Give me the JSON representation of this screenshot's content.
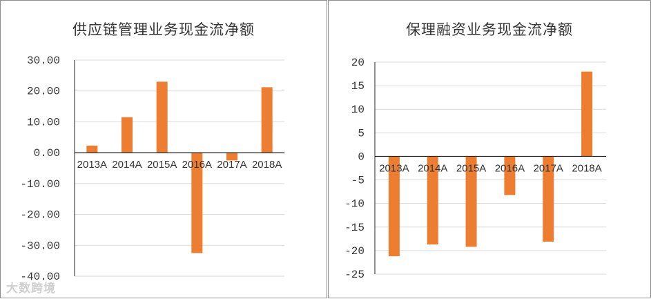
{
  "chart_data": [
    {
      "type": "bar",
      "title": "供应链管理业务现金流净额",
      "categories": [
        "2013A",
        "2014A",
        "2015A",
        "2016A",
        "2017A",
        "2018A"
      ],
      "values": [
        2.3,
        11.5,
        23.0,
        -32.5,
        -2.5,
        21.2
      ],
      "ylim": [
        -40,
        30
      ],
      "yticks": [
        "30.00",
        "20.00",
        "10.00",
        "0.00",
        "-10.00",
        "-20.00",
        "-30.00",
        "-40.00"
      ],
      "grid": true,
      "bar_color": "#ed7d31"
    },
    {
      "type": "bar",
      "title": "保理融资业务现金流净额",
      "categories": [
        "2013A",
        "2014A",
        "2015A",
        "2016A",
        "2017A",
        "2018A"
      ],
      "values": [
        -21.2,
        -18.7,
        -19.2,
        -8.2,
        -18.1,
        18.0
      ],
      "ylim": [
        -25,
        20
      ],
      "yticks": [
        "20",
        "15",
        "10",
        "5",
        "0",
        "-5",
        "-10",
        "-15",
        "-20",
        "-25"
      ],
      "grid": true,
      "bar_color": "#ed7d31"
    }
  ],
  "watermark": "大数跨境"
}
